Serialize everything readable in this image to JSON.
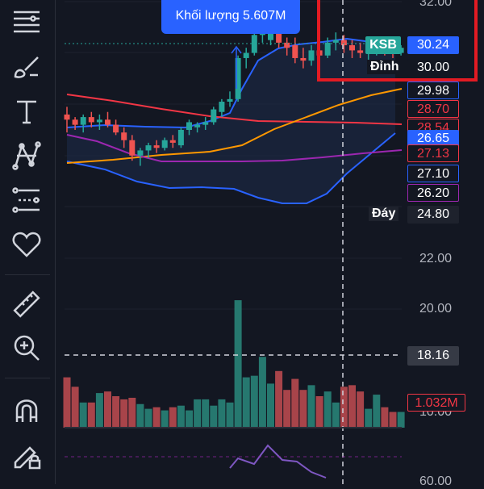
{
  "toolbar": {
    "items": [
      {
        "name": "menu-icon"
      },
      {
        "name": "brush-icon"
      },
      {
        "name": "text-icon"
      },
      {
        "name": "pattern-icon"
      },
      {
        "name": "fib-icon"
      },
      {
        "name": "heart-icon"
      },
      {
        "name": "ruler-icon"
      },
      {
        "name": "zoom-in-icon"
      },
      {
        "name": "magnet-icon"
      },
      {
        "name": "lock-drawing-icon"
      }
    ]
  },
  "volume_bubble": {
    "label": "Khối lượng 5.607M"
  },
  "symbol": {
    "ticker": "KSB",
    "price": "30.24"
  },
  "peak": {
    "label": "Đỉnh",
    "value": "30.00"
  },
  "trough": {
    "label": "Đáy",
    "value": "24.80"
  },
  "price_tags": [
    {
      "value": "29.98",
      "color": "#2962ff",
      "text": "#ffffff",
      "style": "outline"
    },
    {
      "value": "28.70",
      "color": "#f23645",
      "text": "#f23645",
      "style": "outline"
    },
    {
      "value": "28.54",
      "color": "#f23645",
      "text": "#f23645",
      "style": "outline"
    },
    {
      "value": "26.65",
      "color": "#2962ff",
      "text": "#ffffff",
      "style": "solid"
    },
    {
      "value": "27.13",
      "color": "#f23645",
      "text": "#f23645",
      "style": "outline"
    },
    {
      "value": "27.10",
      "color": "#2962ff",
      "text": "#ffffff",
      "style": "outline"
    },
    {
      "value": "26.20",
      "color": "#9c27b0",
      "text": "#ffffff",
      "style": "outline"
    }
  ],
  "axis": {
    "top": "32.00",
    "ticks": [
      "22.00",
      "20.00"
    ],
    "crosshair_price": "18.16",
    "volume_tag": "1.032M",
    "volume_axis": "10.00",
    "bottom": "60.00"
  },
  "colors": {
    "up": "#26a69a",
    "down": "#ef5350",
    "vol_up": "#26786f",
    "vol_down": "#a8444a",
    "bb": "#2962ff",
    "ma_red": "#f23645",
    "ma_orange": "#ff9800",
    "ma_purple": "#9c27b0"
  },
  "chart_data": {
    "type": "candlestick",
    "series": [
      {
        "name": "price",
        "ohlc": [
          [
            27.6,
            27.9,
            26.9,
            27.4
          ],
          [
            27.4,
            27.5,
            27.0,
            27.2
          ],
          [
            27.2,
            27.6,
            26.9,
            27.5
          ],
          [
            27.5,
            27.7,
            27.1,
            27.3
          ],
          [
            27.3,
            27.6,
            27.0,
            27.4
          ],
          [
            27.4,
            27.7,
            27.1,
            27.2
          ],
          [
            27.2,
            27.4,
            26.8,
            26.9
          ],
          [
            26.9,
            27.1,
            26.3,
            26.6
          ],
          [
            26.6,
            26.8,
            25.8,
            26.0
          ],
          [
            26.0,
            26.3,
            25.6,
            26.2
          ],
          [
            26.2,
            26.5,
            25.9,
            26.4
          ],
          [
            26.4,
            26.6,
            26.1,
            26.3
          ],
          [
            26.3,
            26.7,
            26.2,
            26.6
          ],
          [
            26.6,
            26.8,
            26.3,
            26.5
          ],
          [
            26.4,
            27.1,
            26.3,
            27.0
          ],
          [
            27.0,
            27.4,
            26.8,
            27.3
          ],
          [
            27.1,
            27.3,
            26.9,
            27.2
          ],
          [
            27.2,
            27.5,
            27.0,
            27.3
          ],
          [
            27.3,
            27.9,
            27.2,
            27.8
          ],
          [
            27.7,
            28.2,
            27.5,
            28.1
          ],
          [
            28.1,
            28.5,
            27.9,
            28.2
          ],
          [
            28.2,
            29.9,
            28.1,
            29.8
          ],
          [
            29.8,
            30.2,
            29.4,
            30.0
          ],
          [
            30.0,
            30.8,
            29.9,
            30.7
          ],
          [
            30.7,
            31.2,
            30.4,
            30.9
          ],
          [
            30.5,
            31.0,
            30.3,
            30.8
          ],
          [
            30.9,
            31.0,
            30.2,
            30.4
          ],
          [
            30.4,
            30.6,
            29.9,
            30.2
          ],
          [
            30.3,
            30.6,
            29.6,
            29.8
          ],
          [
            29.8,
            30.2,
            29.4,
            29.7
          ],
          [
            29.7,
            30.3,
            29.5,
            30.1
          ],
          [
            30.1,
            30.4,
            29.7,
            29.9
          ],
          [
            29.9,
            30.6,
            29.8,
            30.4
          ],
          [
            30.4,
            30.8,
            30.1,
            30.5
          ],
          [
            30.5,
            30.7,
            30.0,
            30.3
          ],
          [
            30.3,
            30.5,
            29.8,
            30.1
          ],
          [
            30.1,
            30.4,
            29.8,
            30.0
          ],
          [
            30.0,
            30.3,
            29.7,
            30.1
          ],
          [
            30.1,
            30.5,
            29.9,
            30.2
          ],
          [
            30.2,
            30.4,
            29.9,
            30.1
          ],
          [
            30.1,
            30.3,
            29.8,
            30.0
          ],
          [
            30.0,
            30.3,
            29.9,
            30.2
          ]
        ]
      },
      {
        "name": "volume",
        "values": [
          3.2,
          2.6,
          1.6,
          1.6,
          2.2,
          2.3,
          2.0,
          1.8,
          1.9,
          1.5,
          1.2,
          1.3,
          1.1,
          1.3,
          1.4,
          1.1,
          1.8,
          1.8,
          1.4,
          1.8,
          1.6,
          8.1,
          3.2,
          3.3,
          4.5,
          2.8,
          3.6,
          2.4,
          3.1,
          2.4,
          2.7,
          2.0,
          2.3,
          1.6,
          2.6,
          2.7,
          2.3,
          1.2,
          2.1,
          1.3,
          1.0,
          1.0
        ]
      }
    ]
  }
}
